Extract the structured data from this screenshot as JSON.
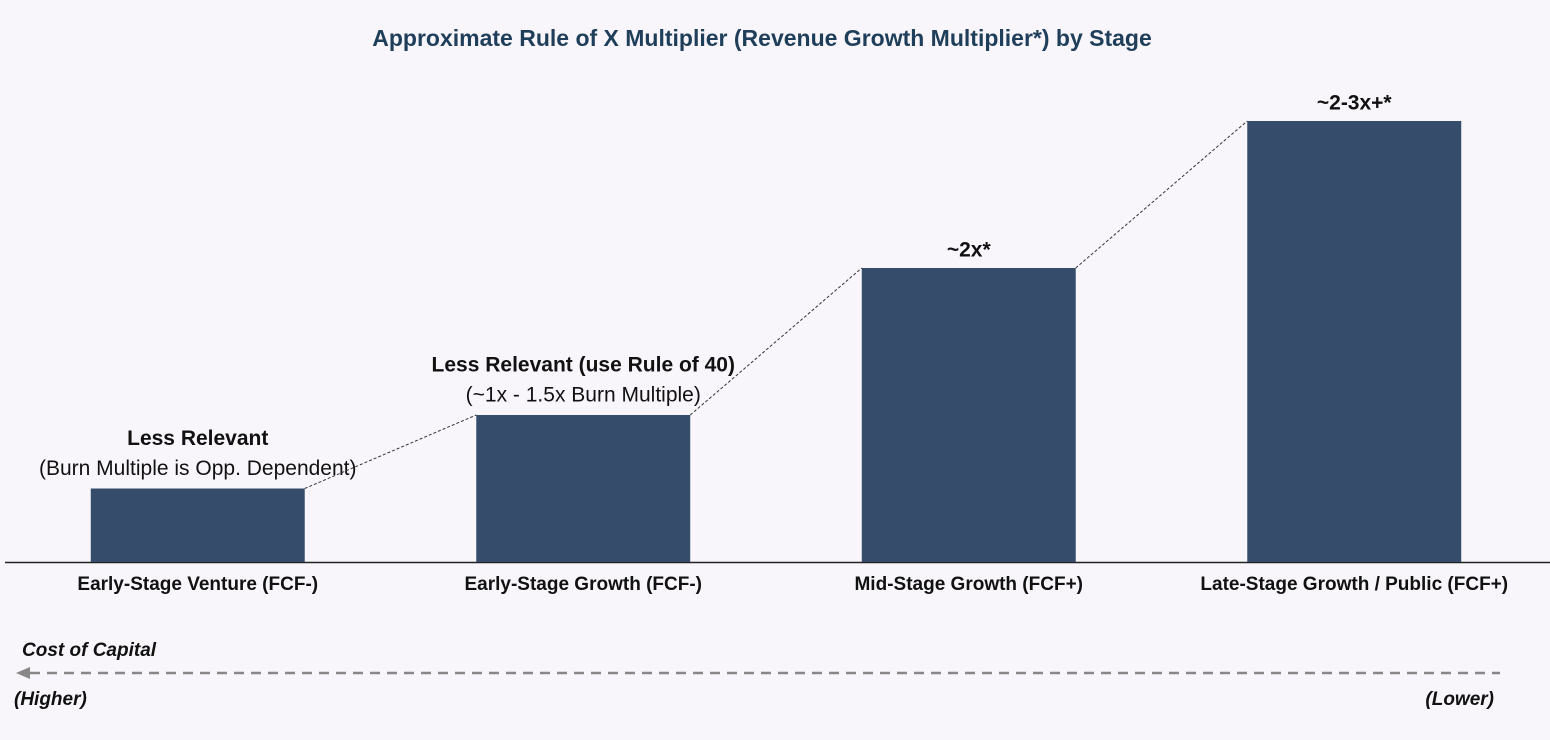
{
  "chart_data": {
    "type": "bar",
    "title": "Approximate Rule of X Multiplier (Revenue Growth Multiplier*) by Stage",
    "categories": [
      "Early-Stage Venture (FCF-)",
      "Early-Stage Growth (FCF-)",
      "Mid-Stage Growth (FCF+)",
      "Late-Stage Growth / Public (FCF+)"
    ],
    "values": [
      1,
      2,
      4,
      6
    ],
    "color": "#364c6b",
    "ylim": [
      0,
      7
    ],
    "annotations": [
      {
        "label": "Less Relevant",
        "note": "(Burn Multiple is Opp. Dependent)"
      },
      {
        "label": "Less Relevant (use Rule of 40)",
        "note": "(~1x - 1.5x Burn Multiple)"
      },
      {
        "label": "~2x*"
      },
      {
        "label": "~2-3x+*"
      }
    ],
    "cost_axis": {
      "label": "Cost of Capital",
      "left": "(Higher)",
      "right": "(Lower)"
    }
  }
}
